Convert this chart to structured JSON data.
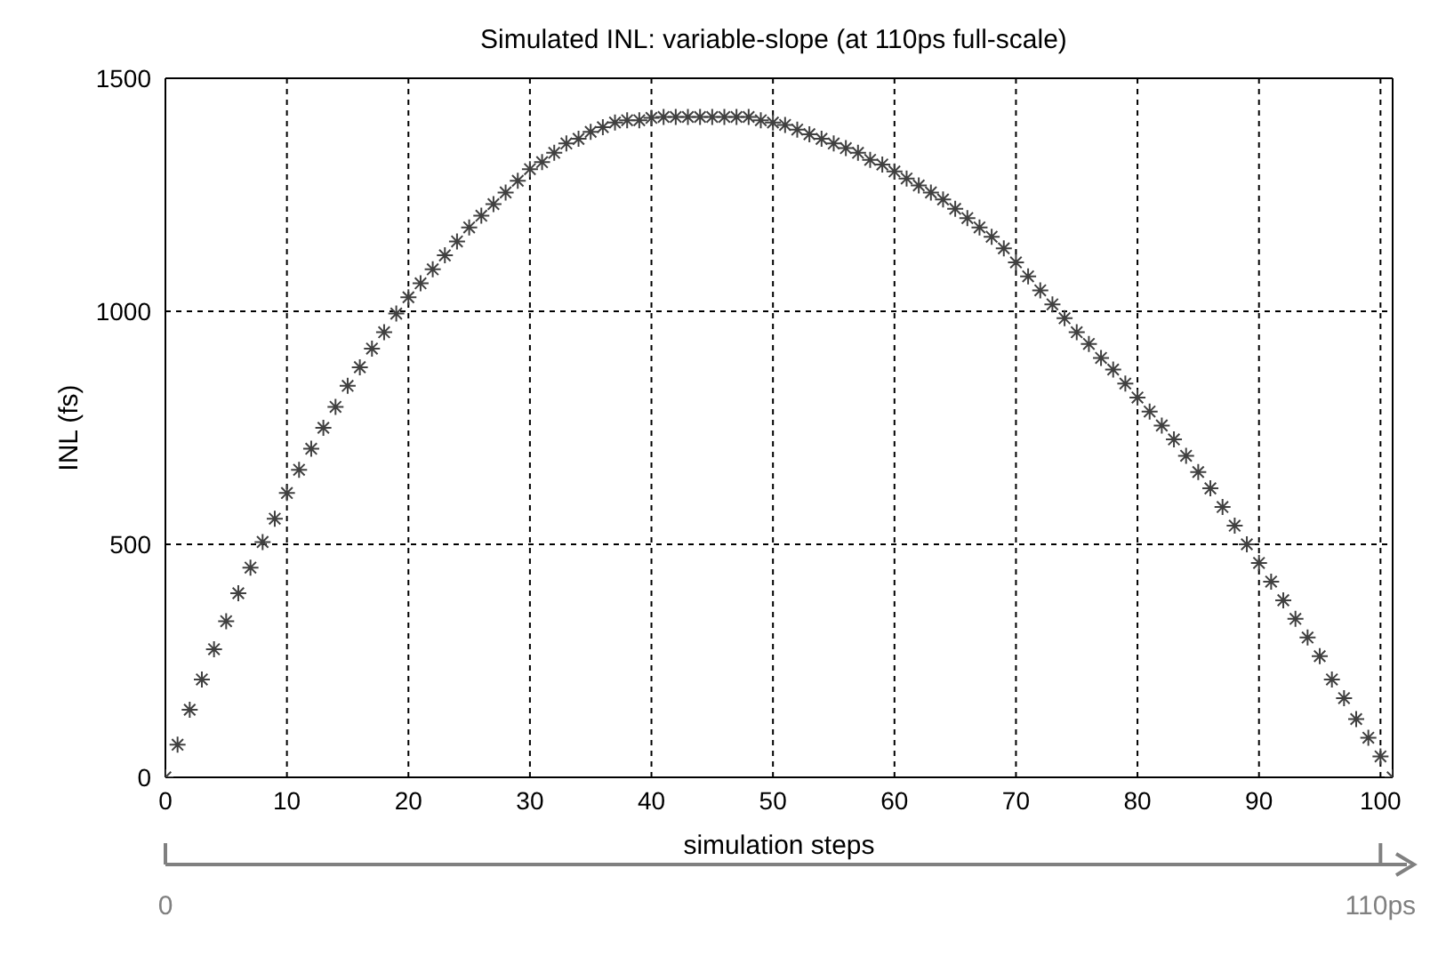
{
  "chart_data": {
    "type": "scatter",
    "title": "Simulated INL: variable-slope (at 110ps full-scale)",
    "xlabel": "simulation steps",
    "ylabel": "INL (fs)",
    "x": [
      0,
      1,
      2,
      3,
      4,
      5,
      6,
      7,
      8,
      9,
      10,
      11,
      12,
      13,
      14,
      15,
      16,
      17,
      18,
      19,
      20,
      21,
      22,
      23,
      24,
      25,
      26,
      27,
      28,
      29,
      30,
      31,
      32,
      33,
      34,
      35,
      36,
      37,
      38,
      39,
      40,
      41,
      42,
      43,
      44,
      45,
      46,
      47,
      48,
      49,
      50,
      51,
      52,
      53,
      54,
      55,
      56,
      57,
      58,
      59,
      60,
      61,
      62,
      63,
      64,
      65,
      66,
      67,
      68,
      69,
      70,
      71,
      72,
      73,
      74,
      75,
      76,
      77,
      78,
      79,
      80,
      81,
      82,
      83,
      84,
      85,
      86,
      87,
      88,
      89,
      90,
      91,
      92,
      93,
      94,
      95,
      96,
      97,
      98,
      99,
      100,
      101
    ],
    "series": [
      {
        "color": "#404040",
        "values": [
          0,
          70,
          145,
          210,
          275,
          335,
          395,
          450,
          505,
          555,
          610,
          660,
          705,
          750,
          795,
          840,
          880,
          920,
          955,
          995,
          1030,
          1060,
          1090,
          1120,
          1150,
          1180,
          1205,
          1230,
          1255,
          1280,
          1305,
          1320,
          1340,
          1360,
          1370,
          1385,
          1395,
          1405,
          1410,
          1410,
          1415,
          1417,
          1417,
          1417,
          1417,
          1417,
          1417,
          1417,
          1417,
          1410,
          1405,
          1400,
          1390,
          1380,
          1370,
          1360,
          1350,
          1340,
          1325,
          1315,
          1300,
          1285,
          1270,
          1255,
          1240,
          1220,
          1200,
          1180,
          1160,
          1135,
          1105,
          1075,
          1045,
          1015,
          985,
          955,
          930,
          900,
          875,
          845,
          815,
          785,
          755,
          725,
          690,
          655,
          620,
          580,
          540,
          500,
          460,
          420,
          380,
          340,
          300,
          260,
          210,
          170,
          125,
          85,
          45,
          0
        ]
      }
    ],
    "xlim": [
      0,
      101
    ],
    "xticks": [
      0,
      10,
      20,
      30,
      40,
      50,
      60,
      70,
      80,
      90,
      100
    ],
    "ylim": [
      0,
      1500
    ],
    "yticks": [
      0,
      500,
      1000,
      1500
    ],
    "x2lim": [
      0,
      111.1
    ],
    "x2ticks": [
      {
        "value": 0,
        "label": "0"
      },
      {
        "value": 110,
        "label": "110ps"
      }
    ],
    "grid": true,
    "marker": "cross",
    "legend": false
  }
}
